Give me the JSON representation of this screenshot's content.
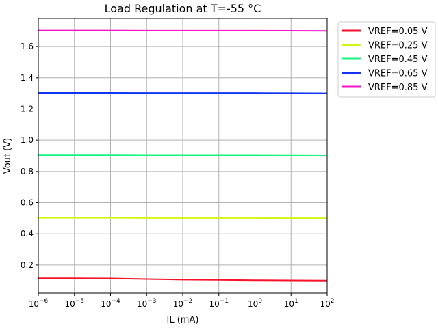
{
  "chart_data": {
    "type": "line",
    "title": "Load Regulation at T=-55 °C",
    "xlabel": "IL (mA)",
    "ylabel": "Vout (V)",
    "xscale": "log",
    "xlim": [
      1e-06,
      100
    ],
    "ylim": [
      0.02,
      1.78
    ],
    "x_ticks": [
      {
        "value": 1e-06,
        "exp": "−6"
      },
      {
        "value": 1e-05,
        "exp": "−5"
      },
      {
        "value": 0.0001,
        "exp": "−4"
      },
      {
        "value": 0.001,
        "exp": "−3"
      },
      {
        "value": 0.01,
        "exp": "−2"
      },
      {
        "value": 0.1,
        "exp": "−1"
      },
      {
        "value": 1,
        "exp": "0"
      },
      {
        "value": 10,
        "exp": "1"
      },
      {
        "value": 100,
        "exp": "2"
      }
    ],
    "x_tick_base": "10",
    "y_ticks": [
      {
        "value": 0.2,
        "label": "0.2"
      },
      {
        "value": 0.4,
        "label": "0.4"
      },
      {
        "value": 0.6,
        "label": "0.6"
      },
      {
        "value": 0.8,
        "label": "0.8"
      },
      {
        "value": 1.0,
        "label": "1.0"
      },
      {
        "value": 1.2,
        "label": "1.2"
      },
      {
        "value": 1.4,
        "label": "1.4"
      },
      {
        "value": 1.6,
        "label": "1.6"
      }
    ],
    "grid": true,
    "legend_position": "outside-top-right",
    "x": [
      1e-06,
      1e-05,
      0.0001,
      0.001,
      0.01,
      0.1,
      1,
      10,
      100
    ],
    "series": [
      {
        "name": "VREF=0.05 V",
        "color": "#f5122a",
        "values": [
          0.115,
          0.115,
          0.114,
          0.11,
          0.106,
          0.104,
          0.102,
          0.101,
          0.1
        ]
      },
      {
        "name": "VREF=0.25 V",
        "color": "#d4f514",
        "values": [
          0.503,
          0.503,
          0.503,
          0.502,
          0.502,
          0.502,
          0.502,
          0.501,
          0.501
        ]
      },
      {
        "name": "VREF=0.45 V",
        "color": "#14f57f",
        "values": [
          0.903,
          0.903,
          0.903,
          0.902,
          0.902,
          0.902,
          0.902,
          0.901,
          0.9
        ]
      },
      {
        "name": "VREF=0.65 V",
        "color": "#1434f5",
        "values": [
          1.303,
          1.303,
          1.303,
          1.302,
          1.302,
          1.302,
          1.302,
          1.301,
          1.3
        ]
      },
      {
        "name": "VREF=0.85 V",
        "color": "#f514c9",
        "values": [
          1.703,
          1.703,
          1.703,
          1.702,
          1.702,
          1.702,
          1.702,
          1.701,
          1.7
        ]
      }
    ]
  }
}
